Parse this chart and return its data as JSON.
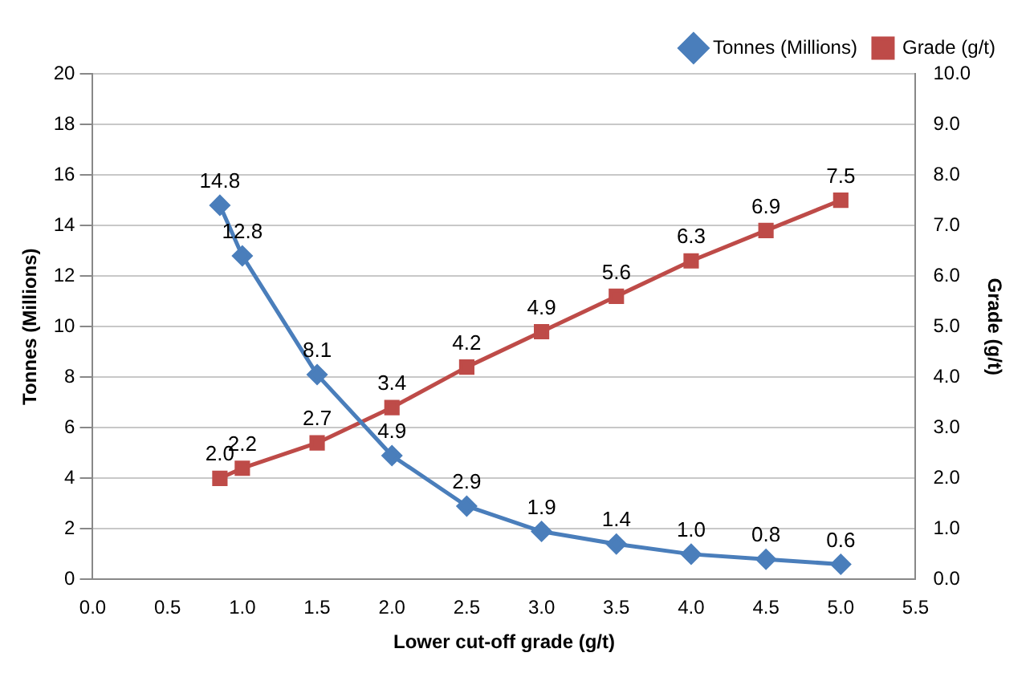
{
  "chart_data": {
    "type": "line",
    "xlabel": "Lower cut-off grade (g/t)",
    "ylabel": "Tonnes (Millions)",
    "y2label": "Grade (g/t)",
    "x": [
      0.85,
      1.0,
      1.5,
      2.0,
      2.5,
      3.0,
      3.5,
      4.0,
      4.5,
      5.0
    ],
    "series": [
      {
        "name": "Tonnes (Millions)",
        "color": "#4a7ebb",
        "marker": "diamond",
        "values": [
          14.8,
          12.8,
          8.1,
          4.9,
          2.9,
          1.9,
          1.4,
          1.0,
          0.8,
          0.6
        ],
        "value_labels": [
          "14.8",
          "12.8",
          "8.1",
          "4.9",
          "2.9",
          "1.9",
          "1.4",
          "1.0",
          "0.8",
          "0.6"
        ]
      },
      {
        "name": "Grade (g/t)",
        "color": "#be4b48",
        "marker": "square",
        "axis": "y2",
        "values": [
          2.0,
          2.2,
          2.7,
          3.4,
          4.2,
          4.9,
          5.6,
          6.3,
          6.9,
          7.5
        ],
        "value_labels": [
          "2.0",
          "2.2",
          "2.7",
          "3.4",
          "4.2",
          "4.9",
          "5.6",
          "6.3",
          "6.9",
          "7.5"
        ]
      }
    ],
    "xlim": [
      0,
      5.5
    ],
    "xticks": [
      {
        "value": 0,
        "label": "0.0"
      },
      {
        "value": 0.5,
        "label": "0.5"
      },
      {
        "value": 1,
        "label": "1.0"
      },
      {
        "value": 1.5,
        "label": "1.5"
      },
      {
        "value": 2,
        "label": "2.0"
      },
      {
        "value": 2.5,
        "label": "2.5"
      },
      {
        "value": 3,
        "label": "3.0"
      },
      {
        "value": 3.5,
        "label": "3.5"
      },
      {
        "value": 4,
        "label": "4.0"
      },
      {
        "value": 4.5,
        "label": "4.5"
      },
      {
        "value": 5,
        "label": "5.0"
      },
      {
        "value": 5.5,
        "label": "5.5"
      }
    ],
    "ylim": [
      0,
      20
    ],
    "yticks": [
      0,
      2,
      4,
      6,
      8,
      10,
      12,
      14,
      16,
      18,
      20
    ],
    "y2lim": [
      0,
      10
    ],
    "y2ticks": [
      {
        "value": 0,
        "label": "0.0"
      },
      {
        "value": 1,
        "label": "1.0"
      },
      {
        "value": 2,
        "label": "2.0"
      },
      {
        "value": 3,
        "label": "3.0"
      },
      {
        "value": 4,
        "label": "4.0"
      },
      {
        "value": 5,
        "label": "5.0"
      },
      {
        "value": 6,
        "label": "6.0"
      },
      {
        "value": 7,
        "label": "7.0"
      },
      {
        "value": 8,
        "label": "8.0"
      },
      {
        "value": 9,
        "label": "9.0"
      },
      {
        "value": 10,
        "label": "10.0"
      }
    ],
    "grid": "y",
    "legend": "top right"
  }
}
